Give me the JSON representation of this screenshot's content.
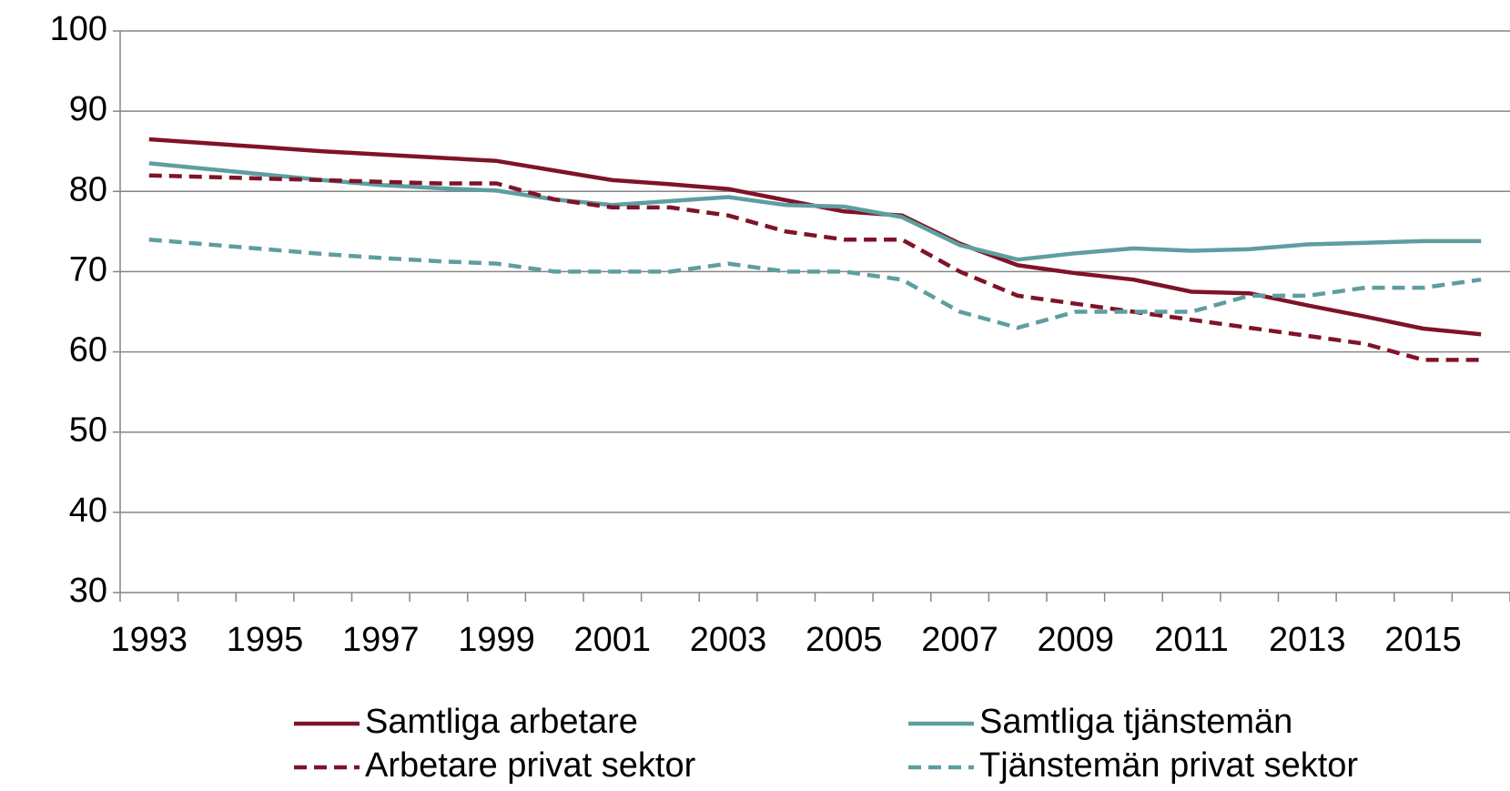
{
  "chart_data": {
    "type": "line",
    "categories": [
      "1993",
      null,
      "1995",
      null,
      "1997",
      null,
      "1999",
      null,
      "2001",
      null,
      "2003",
      null,
      "2005",
      null,
      "2007",
      null,
      "2009",
      null,
      "2011",
      null,
      "2013",
      null,
      "2015",
      null
    ],
    "series": [
      {
        "name": "Samtliga arbetare",
        "color": "#7f1328",
        "dash": false,
        "values": [
          86.5,
          86,
          85.5,
          85,
          84.6,
          84.2,
          83.8,
          82.6,
          81.4,
          80.9,
          80.3,
          78.9,
          77.5,
          77,
          73.5,
          70.8,
          69.8,
          69,
          67.5,
          67.3,
          65.8,
          64.4,
          62.9,
          62.2
        ]
      },
      {
        "name": "Samtliga tjänstemän",
        "color": "#5e9ea0",
        "dash": false,
        "values": [
          83.5,
          82.8,
          82.1,
          81.4,
          80.8,
          80.4,
          80.1,
          79,
          78.3,
          78.8,
          79.3,
          78.3,
          78.1,
          76.8,
          73.3,
          71.5,
          72.3,
          72.9,
          72.6,
          72.8,
          73.4,
          73.6,
          73.8,
          73.8
        ]
      },
      {
        "name": "Arbetare privat sektor",
        "color": "#7f1328",
        "dash": true,
        "values": [
          82,
          81.8,
          81.6,
          81.4,
          81.2,
          81,
          81,
          79,
          78,
          78,
          77,
          75,
          74,
          74,
          70,
          67,
          66,
          65,
          64,
          63,
          62,
          61,
          59,
          59
        ]
      },
      {
        "name": "Tjänstemän privat sektor",
        "color": "#5e9ea0",
        "dash": true,
        "values": [
          74,
          73.4,
          72.8,
          72.2,
          71.7,
          71.3,
          71,
          70,
          70,
          70,
          71,
          70,
          70,
          69,
          65,
          63,
          65,
          65,
          65,
          67,
          67,
          68,
          68,
          69
        ]
      }
    ],
    "ylim": [
      30,
      100
    ],
    "yticks": [
      30,
      40,
      50,
      60,
      70,
      80,
      90,
      100
    ],
    "grid": true
  }
}
